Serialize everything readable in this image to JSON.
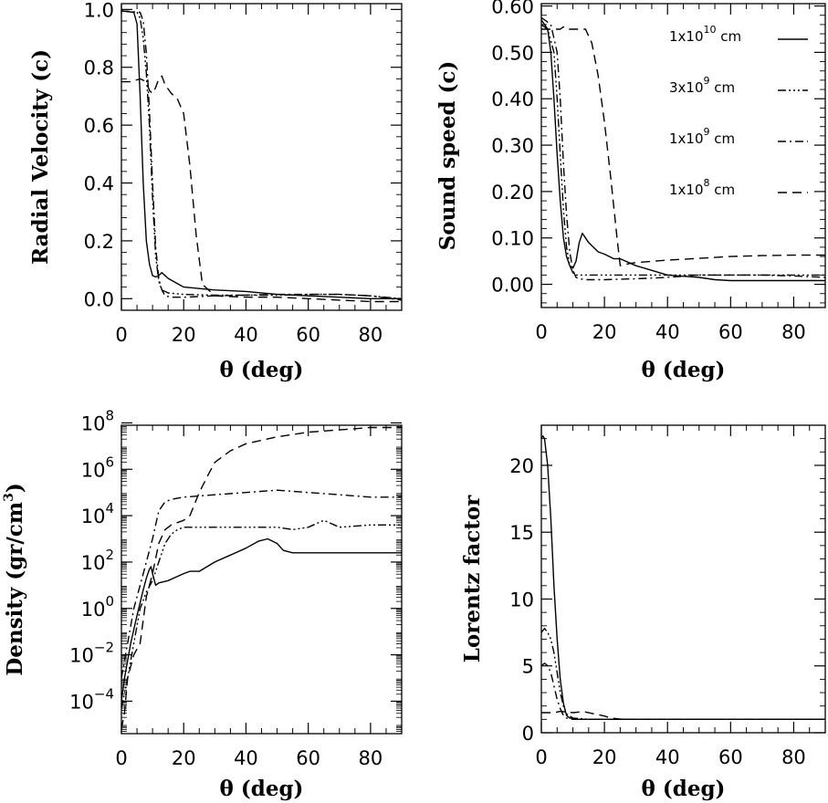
{
  "chart_data": [
    {
      "type": "line",
      "panel": "radial-velocity",
      "xlabel": "θ (deg)",
      "ylabel": "Radial Velocity (c)",
      "xlim": [
        0,
        90
      ],
      "ylim": [
        -0.04,
        1.02
      ],
      "xticks": [
        0,
        20,
        40,
        60,
        80
      ],
      "yticks": [
        0.0,
        0.2,
        0.4,
        0.6,
        0.8,
        1.0
      ],
      "ytick_labels": [
        "0.0",
        "0.2",
        "0.4",
        "0.6",
        "0.8",
        "1.0"
      ],
      "yscale": "linear",
      "series": [
        {
          "style": "solid",
          "x": [
            0,
            4,
            5,
            6,
            7,
            8,
            9,
            10,
            11,
            12,
            13,
            15,
            20,
            25,
            30,
            40,
            50,
            60,
            70,
            80,
            90
          ],
          "y": [
            0.995,
            0.99,
            0.95,
            0.7,
            0.4,
            0.2,
            0.12,
            0.08,
            0.075,
            0.08,
            0.09,
            0.07,
            0.04,
            0.035,
            0.03,
            0.025,
            0.015,
            0.01,
            0.005,
            0.0,
            0.0
          ]
        },
        {
          "style": "dash-dot-dot-dot",
          "x": [
            0,
            5,
            6,
            7,
            8,
            9,
            10,
            11,
            12,
            13,
            15,
            20,
            30,
            40,
            50,
            60,
            70,
            80,
            90
          ],
          "y": [
            0.995,
            0.99,
            0.97,
            0.9,
            0.78,
            0.6,
            0.35,
            0.15,
            0.06,
            0.03,
            0.02,
            0.015,
            0.012,
            0.012,
            0.012,
            0.015,
            0.015,
            0.01,
            0.0
          ]
        },
        {
          "style": "dash-dot",
          "x": [
            0,
            6,
            7,
            8,
            9,
            10,
            11,
            12,
            13,
            14,
            16,
            20,
            30,
            40,
            50,
            60,
            70,
            80,
            90
          ],
          "y": [
            0.995,
            0.99,
            0.96,
            0.85,
            0.65,
            0.4,
            0.18,
            0.07,
            0.03,
            0.01,
            0.005,
            0.005,
            0.01,
            0.012,
            0.015,
            0.015,
            0.015,
            0.01,
            -0.005
          ]
        },
        {
          "style": "dashed",
          "x": [
            0,
            3,
            6,
            8,
            9,
            10,
            11,
            12,
            13,
            14,
            16,
            18,
            20,
            22,
            24,
            26,
            30,
            40,
            50,
            60,
            70,
            80,
            90
          ],
          "y": [
            0.75,
            0.75,
            0.76,
            0.75,
            0.72,
            0.71,
            0.73,
            0.76,
            0.77,
            0.74,
            0.71,
            0.69,
            0.64,
            0.46,
            0.22,
            0.05,
            0.01,
            0.005,
            0.005,
            0.0,
            -0.005,
            -0.01,
            -0.01
          ]
        }
      ]
    },
    {
      "type": "line",
      "panel": "sound-speed",
      "xlabel": "θ (deg)",
      "ylabel": "Sound speed (c)",
      "xlim": [
        0,
        90
      ],
      "ylim": [
        -0.05,
        0.605
      ],
      "xticks": [
        0,
        20,
        40,
        60,
        80
      ],
      "yticks": [
        0.0,
        0.1,
        0.2,
        0.3,
        0.4,
        0.5,
        0.6
      ],
      "ytick_labels": [
        "0.00",
        "0.10",
        "0.20",
        "0.30",
        "0.40",
        "0.50",
        "0.60"
      ],
      "yscale": "linear",
      "legend": {
        "position": "top-right",
        "entries": [
          {
            "mantissa": "1x10",
            "exponent": "10",
            "unit": " cm",
            "style": "solid"
          },
          {
            "mantissa": "3x10",
            "exponent": "9",
            "unit": " cm",
            "style": "dash-dot-dot-dot"
          },
          {
            "mantissa": "1x10",
            "exponent": "9",
            "unit": " cm",
            "style": "dash-dot"
          },
          {
            "mantissa": "1x10",
            "exponent": "8",
            "unit": " cm",
            "style": "dashed"
          }
        ]
      },
      "series": [
        {
          "style": "solid",
          "x": [
            0,
            2,
            3,
            4,
            5,
            6,
            7,
            8,
            9,
            10,
            11,
            12,
            13,
            15,
            18,
            20,
            23,
            25,
            30,
            40,
            50,
            55,
            60,
            70,
            80,
            90
          ],
          "y": [
            0.57,
            0.55,
            0.5,
            0.4,
            0.28,
            0.18,
            0.1,
            0.06,
            0.04,
            0.035,
            0.05,
            0.09,
            0.11,
            0.09,
            0.07,
            0.065,
            0.055,
            0.055,
            0.04,
            0.02,
            0.015,
            0.01,
            0.008,
            0.008,
            0.008,
            0.008
          ]
        },
        {
          "style": "dash-dot-dot-dot",
          "x": [
            0,
            2,
            4,
            5,
            6,
            7,
            8,
            9,
            10,
            11,
            12,
            15,
            20,
            30,
            40,
            50,
            60,
            70,
            80,
            90
          ],
          "y": [
            0.56,
            0.55,
            0.5,
            0.4,
            0.28,
            0.16,
            0.08,
            0.04,
            0.025,
            0.02,
            0.02,
            0.02,
            0.02,
            0.02,
            0.02,
            0.02,
            0.02,
            0.02,
            0.02,
            0.02
          ]
        },
        {
          "style": "dash-dot",
          "x": [
            0,
            3,
            5,
            6,
            7,
            8,
            9,
            10,
            11,
            12,
            14,
            20,
            30,
            40,
            50,
            60,
            70,
            80,
            90
          ],
          "y": [
            0.575,
            0.56,
            0.5,
            0.4,
            0.26,
            0.15,
            0.07,
            0.03,
            0.015,
            0.012,
            0.01,
            0.01,
            0.012,
            0.015,
            0.02,
            0.02,
            0.02,
            0.018,
            0.015
          ]
        },
        {
          "style": "dashed",
          "x": [
            0,
            3,
            5,
            6,
            7,
            8,
            14,
            16,
            18,
            20,
            22,
            24,
            25,
            28,
            30,
            40,
            50,
            60,
            70,
            80,
            90
          ],
          "y": [
            0.55,
            0.55,
            0.55,
            0.55,
            0.555,
            0.55,
            0.55,
            0.52,
            0.45,
            0.35,
            0.23,
            0.1,
            0.04,
            0.045,
            0.047,
            0.052,
            0.056,
            0.06,
            0.062,
            0.063,
            0.063
          ]
        }
      ]
    },
    {
      "type": "line",
      "panel": "density",
      "xlabel": "θ (deg)",
      "ylabel": "Density (gr/cm3)",
      "ylabel_main": "Density (gr/cm",
      "ylabel_sup": "3",
      "ylabel_close": ")",
      "xlim": [
        0,
        90
      ],
      "ylim": [
        -5.4,
        7.9
      ],
      "xticks": [
        0,
        20,
        40,
        60,
        80
      ],
      "yscale": "log",
      "yticks": [
        {
          "value": -4,
          "base": "10",
          "exp": "−4"
        },
        {
          "value": -2,
          "base": "10",
          "exp": "−2"
        },
        {
          "value": 0,
          "base": "10",
          "exp": "0"
        },
        {
          "value": 2,
          "base": "10",
          "exp": "2"
        },
        {
          "value": 4,
          "base": "10",
          "exp": "4"
        },
        {
          "value": 6,
          "base": "10",
          "exp": "6"
        },
        {
          "value": 8,
          "base": "10",
          "exp": "8"
        }
      ],
      "series": [
        {
          "style": "solid",
          "x": [
            0,
            1,
            3,
            5,
            7,
            8,
            9,
            9.5,
            10,
            11,
            12,
            15,
            20,
            22,
            25,
            30,
            35,
            40,
            44,
            47,
            50,
            52,
            55,
            60,
            70,
            80,
            90
          ],
          "y": [
            -4.0,
            -3.0,
            -1.5,
            -0.3,
            0.8,
            1.3,
            1.7,
            1.8,
            1.5,
            1.0,
            1.1,
            1.2,
            1.5,
            1.6,
            1.6,
            2.0,
            2.3,
            2.6,
            2.9,
            3.0,
            2.8,
            2.5,
            2.4,
            2.4,
            2.4,
            2.4,
            2.4
          ]
        },
        {
          "style": "dash-dot-dot-dot",
          "x": [
            0,
            2,
            4,
            6,
            8,
            10,
            12,
            14,
            16,
            18,
            20,
            30,
            40,
            50,
            55,
            60,
            65,
            70,
            80,
            90
          ],
          "y": [
            -4.3,
            -3.0,
            -1.5,
            0.0,
            0.7,
            1.2,
            2.0,
            2.8,
            3.2,
            3.4,
            3.5,
            3.5,
            3.5,
            3.5,
            3.4,
            3.5,
            3.8,
            3.5,
            3.6,
            3.6
          ]
        },
        {
          "style": "dash-dot",
          "x": [
            0,
            2,
            4,
            6,
            8,
            10,
            12,
            14,
            16,
            20,
            30,
            40,
            50,
            60,
            70,
            80,
            90
          ],
          "y": [
            -3.0,
            -1.5,
            0.0,
            1.0,
            2.0,
            3.0,
            4.2,
            4.6,
            4.7,
            4.8,
            4.9,
            5.0,
            5.1,
            5.0,
            4.9,
            4.8,
            4.8
          ]
        },
        {
          "style": "dashed",
          "x": [
            0,
            1,
            2,
            4,
            6,
            8,
            10,
            12,
            14,
            16,
            18,
            20,
            22,
            25,
            28,
            30,
            35,
            40,
            50,
            60,
            70,
            80,
            90
          ],
          "y": [
            -5.2,
            -4.5,
            -3.0,
            -2.0,
            -1.5,
            0.5,
            1.5,
            2.8,
            3.4,
            3.6,
            3.7,
            3.8,
            4.0,
            5.0,
            5.8,
            6.3,
            6.8,
            7.1,
            7.4,
            7.6,
            7.7,
            7.8,
            7.8
          ]
        }
      ]
    },
    {
      "type": "line",
      "panel": "lorentz-factor",
      "xlabel": "θ (deg)",
      "ylabel": "Lorentz factor",
      "xlim": [
        0,
        90
      ],
      "ylim": [
        0,
        23
      ],
      "xticks": [
        0,
        20,
        40,
        60,
        80
      ],
      "yticks": [
        0,
        5,
        10,
        15,
        20
      ],
      "ytick_labels": [
        "0",
        "5",
        "10",
        "15",
        "20"
      ],
      "yscale": "linear",
      "series": [
        {
          "style": "solid",
          "x": [
            0,
            0.5,
            1,
            2,
            3,
            4,
            5,
            6,
            7,
            8,
            9,
            10,
            12,
            15,
            20,
            30,
            50,
            90
          ],
          "y": [
            22,
            22.2,
            22,
            20,
            16,
            11,
            7,
            4,
            2.2,
            1.3,
            1.1,
            1.05,
            1.0,
            1.0,
            1.0,
            1.0,
            1.0,
            1.0
          ]
        },
        {
          "style": "dash-dot-dot-dot",
          "x": [
            0,
            1,
            2,
            3,
            4,
            5,
            6,
            7,
            8,
            10,
            15,
            20,
            90
          ],
          "y": [
            7.5,
            7.8,
            7.5,
            7.0,
            6.0,
            4.5,
            3.0,
            2.0,
            1.4,
            1.1,
            1.0,
            1.0,
            1.0
          ]
        },
        {
          "style": "dash-dot",
          "x": [
            0,
            1,
            2,
            3,
            4,
            5,
            6,
            7,
            8,
            10,
            15,
            90
          ],
          "y": [
            5.0,
            5.2,
            5.0,
            4.5,
            3.5,
            2.5,
            1.8,
            1.3,
            1.1,
            1.0,
            1.0,
            1.0
          ]
        },
        {
          "style": "dashed",
          "x": [
            0,
            2,
            4,
            6,
            8,
            10,
            12,
            14,
            16,
            18,
            20,
            22,
            25,
            30,
            90
          ],
          "y": [
            1.5,
            1.5,
            1.5,
            1.6,
            1.55,
            1.5,
            1.55,
            1.55,
            1.45,
            1.35,
            1.25,
            1.1,
            1.02,
            1.0,
            1.0
          ]
        }
      ]
    }
  ]
}
